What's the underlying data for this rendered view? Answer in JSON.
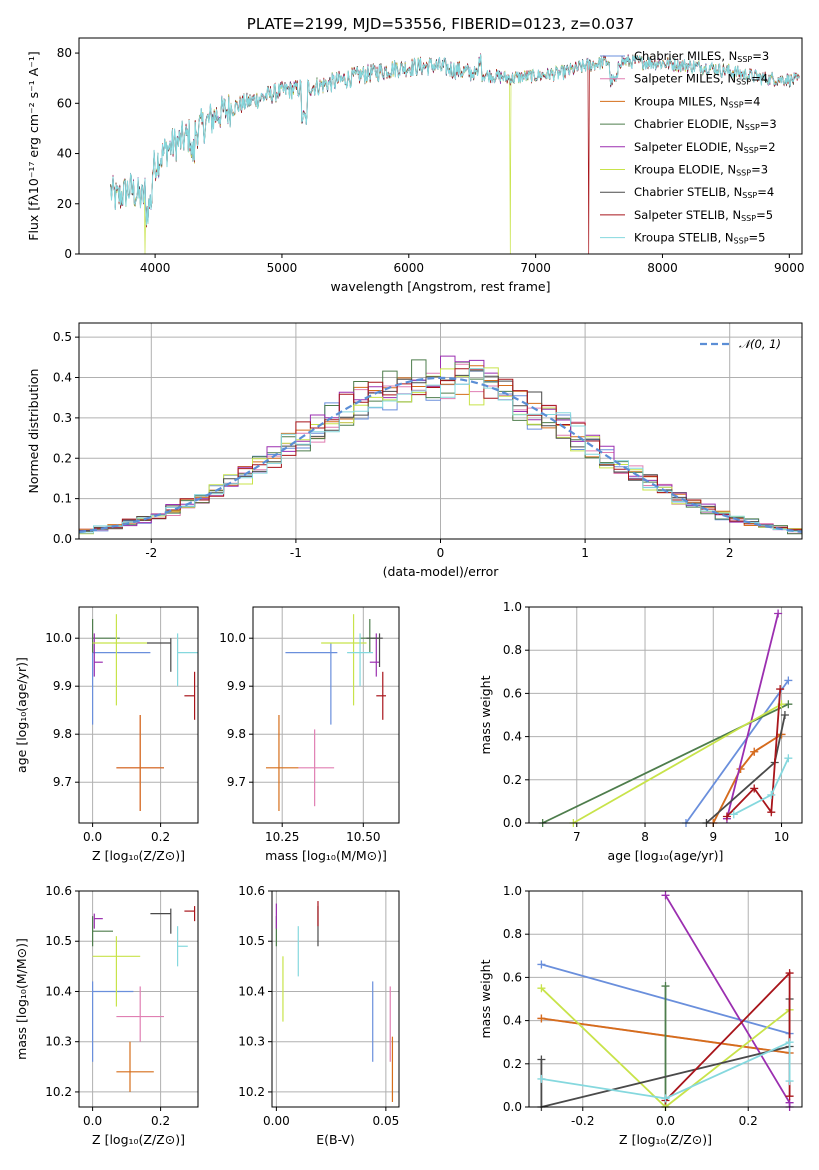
{
  "colors": {
    "Chabrier MILES": "#6a8fdc",
    "Salpeter MILES": "#e07fb2",
    "Kroupa MILES": "#d56e1a",
    "Chabrier ELODIE": "#4e7d4c",
    "Salpeter ELODIE": "#9b2fb0",
    "Kroupa ELODIE": "#c8e34a",
    "Chabrier STELIB": "#4a4a4a",
    "Salpeter STELIB": "#a8151b",
    "Kroupa STELIB": "#85d8de"
  },
  "chart_data": [
    {
      "id": "spectrum",
      "type": "line",
      "title": "PLATE=2199, MJD=53556, FIBERID=0123, z=0.037",
      "xlabel": "wavelength [Angstrom, rest frame]",
      "ylabel": "Flux [fλ10⁻¹⁷ erg cm⁻² s⁻¹ A⁻¹]",
      "xlim": [
        3400,
        9100
      ],
      "ylim": [
        0,
        86
      ],
      "xticks": [
        4000,
        5000,
        6000,
        7000,
        8000,
        9000
      ],
      "yticks": [
        0,
        20,
        40,
        60,
        80
      ],
      "continuum": {
        "x": [
          3650,
          3700,
          3800,
          3900,
          4000,
          4100,
          4300,
          4500,
          4700,
          5000,
          5300,
          5600,
          5900,
          6200,
          6500,
          6800,
          7000,
          7200,
          7400,
          7600,
          8000,
          8400,
          8800,
          9100
        ],
        "y": [
          25,
          22,
          26,
          22,
          36,
          42,
          48,
          56,
          60,
          65,
          67,
          71,
          74,
          75,
          72,
          70,
          71,
          72,
          75,
          77,
          76,
          74,
          70,
          69
        ]
      },
      "legend": [
        {
          "label": "Chabrier MILES, N",
          "n": "3"
        },
        {
          "label": "Salpeter MILES, N",
          "n": "4"
        },
        {
          "label": "Kroupa MILES, N",
          "n": "4"
        },
        {
          "label": "Chabrier ELODIE, N",
          "n": "3"
        },
        {
          "label": "Salpeter ELODIE, N",
          "n": "2"
        },
        {
          "label": "Kroupa ELODIE, N",
          "n": "3"
        },
        {
          "label": "Chabrier STELIB, N",
          "n": "4"
        },
        {
          "label": "Salpeter STELIB, N",
          "n": "5"
        },
        {
          "label": "Kroupa STELIB, N",
          "n": "5"
        }
      ],
      "legend_subscript": "SSP",
      "model_cutoffs": [
        {
          "series": "Salpeter STELIB",
          "x": 7420
        },
        {
          "series": "Kroupa ELODIE",
          "x": 6800
        },
        {
          "series": "Kroupa ELODIE",
          "x": 3920
        }
      ]
    },
    {
      "id": "residuals",
      "type": "histogram",
      "xlabel": "(data-model)/error",
      "ylabel": "Normed distribution",
      "xlim": [
        -2.5,
        2.5
      ],
      "ylim": [
        0,
        0.535
      ],
      "xticks": [
        -2,
        -1,
        0,
        1,
        2
      ],
      "yticks": [
        0.0,
        0.1,
        0.2,
        0.3,
        0.4,
        0.5
      ],
      "gaussian_label": "𝒩(0, 1)",
      "bin_width": 0.1
    },
    {
      "id": "age-vs-Z",
      "type": "errorbar",
      "xlabel": "Z [log₁₀(Z/Z⊙)]",
      "ylabel": "age  [log₁₀(age/yr)]",
      "xlim": [
        -0.04,
        0.31
      ],
      "ylim": [
        9.615,
        10.065
      ],
      "xticks": [
        0.0,
        0.2
      ],
      "yticks": [
        9.7,
        9.8,
        9.9,
        10.0
      ],
      "points": [
        {
          "series": "Chabrier MILES",
          "x": 0.0,
          "xerr": [
            0.0,
            0.17
          ],
          "y": 9.97,
          "yerr": [
            0.15,
            0.02
          ]
        },
        {
          "series": "Salpeter MILES",
          "x": 0.14,
          "xerr": [
            0.07,
            0.07
          ],
          "y": 9.73,
          "yerr": [
            0.09,
            0.11
          ]
        },
        {
          "series": "Kroupa MILES",
          "x": 0.14,
          "xerr": [
            0.07,
            0.07
          ],
          "y": 9.73,
          "yerr": [
            0.09,
            0.11
          ]
        },
        {
          "series": "Chabrier ELODIE",
          "x": 0.0,
          "xerr": [
            0.0,
            0.08
          ],
          "y": 10.0,
          "yerr": [
            0.03,
            0.04
          ]
        },
        {
          "series": "Salpeter ELODIE",
          "x": 0.005,
          "xerr": [
            0.0,
            0.025
          ],
          "y": 9.95,
          "yerr": [
            0.03,
            0.06
          ]
        },
        {
          "series": "Kroupa ELODIE",
          "x": 0.07,
          "xerr": [
            0.07,
            0.09
          ],
          "y": 9.99,
          "yerr": [
            0.13,
            0.06
          ]
        },
        {
          "series": "Chabrier STELIB",
          "x": 0.23,
          "xerr": [
            0.07,
            0.0
          ],
          "y": 9.99,
          "yerr": [
            0.06,
            0.01
          ]
        },
        {
          "series": "Salpeter STELIB",
          "x": 0.3,
          "xerr": [
            0.03,
            0.0
          ],
          "y": 9.88,
          "yerr": [
            0.05,
            0.05
          ]
        },
        {
          "series": "Kroupa STELIB",
          "x": 0.25,
          "xerr": [
            0.0,
            0.06
          ],
          "y": 9.97,
          "yerr": [
            0.07,
            0.04
          ]
        }
      ]
    },
    {
      "id": "age-vs-mass",
      "type": "errorbar",
      "xlabel": "mass [log₁₀(M/M⊙)]",
      "ylabel": "",
      "xlim": [
        10.16,
        10.61
      ],
      "ylim": [
        9.615,
        10.065
      ],
      "xticks": [
        10.25,
        10.5
      ],
      "yticks": [
        9.7,
        9.8,
        9.9,
        10.0
      ],
      "points": [
        {
          "series": "Chabrier MILES",
          "x": 10.4,
          "xerr": [
            0.14,
            0.02
          ],
          "y": 9.97,
          "yerr": [
            0.15,
            0.02
          ]
        },
        {
          "series": "Salpeter MILES",
          "x": 10.35,
          "xerr": [
            0.05,
            0.06
          ],
          "y": 9.73,
          "yerr": [
            0.08,
            0.08
          ]
        },
        {
          "series": "Kroupa MILES",
          "x": 10.24,
          "xerr": [
            0.04,
            0.06
          ],
          "y": 9.73,
          "yerr": [
            0.09,
            0.11
          ]
        },
        {
          "series": "Chabrier ELODIE",
          "x": 10.52,
          "xerr": [
            0.03,
            0.03
          ],
          "y": 10.0,
          "yerr": [
            0.03,
            0.04
          ]
        },
        {
          "series": "Salpeter ELODIE",
          "x": 10.54,
          "xerr": [
            0.02,
            0.01
          ],
          "y": 9.95,
          "yerr": [
            0.03,
            0.06
          ]
        },
        {
          "series": "Kroupa ELODIE",
          "x": 10.47,
          "xerr": [
            0.1,
            0.04
          ],
          "y": 9.99,
          "yerr": [
            0.13,
            0.06
          ]
        },
        {
          "series": "Chabrier STELIB",
          "x": 10.55,
          "xerr": [
            0.04,
            0.01
          ],
          "y": 10.0,
          "yerr": [
            0.06,
            0.01
          ]
        },
        {
          "series": "Salpeter STELIB",
          "x": 10.56,
          "xerr": [
            0.02,
            0.01
          ],
          "y": 9.88,
          "yerr": [
            0.05,
            0.05
          ]
        },
        {
          "series": "Kroupa STELIB",
          "x": 10.49,
          "xerr": [
            0.04,
            0.04
          ],
          "y": 9.97,
          "yerr": [
            0.07,
            0.04
          ]
        }
      ]
    },
    {
      "id": "weight-vs-age",
      "type": "line",
      "xlabel": "age  [log₁₀(age/yr)]",
      "ylabel": "mass weight",
      "xlim": [
        6.3,
        10.3
      ],
      "ylim": [
        0,
        1.0
      ],
      "xticks": [
        7,
        8,
        9,
        10
      ],
      "yticks": [
        0.0,
        0.2,
        0.4,
        0.6,
        0.8,
        1.0
      ],
      "series": [
        {
          "name": "Chabrier MILES",
          "x": [
            8.6,
            10.1
          ],
          "y": [
            0.0,
            0.66
          ]
        },
        {
          "name": "Salpeter MILES",
          "x": [
            9.0,
            9.4,
            9.6,
            10.0
          ],
          "y": [
            0.0,
            0.25,
            0.33,
            0.41
          ]
        },
        {
          "name": "Kroupa MILES",
          "x": [
            9.0,
            9.4,
            9.6,
            10.0
          ],
          "y": [
            0.0,
            0.25,
            0.33,
            0.41
          ]
        },
        {
          "name": "Chabrier ELODIE",
          "x": [
            6.5,
            10.1
          ],
          "y": [
            0.0,
            0.55
          ]
        },
        {
          "name": "Salpeter ELODIE",
          "x": [
            9.2,
            9.95
          ],
          "y": [
            0.02,
            0.97
          ]
        },
        {
          "name": "Kroupa ELODIE",
          "x": [
            6.95,
            10.0
          ],
          "y": [
            0.0,
            0.55
          ]
        },
        {
          "name": "Chabrier STELIB",
          "x": [
            8.9,
            9.9,
            10.05
          ],
          "y": [
            0.0,
            0.28,
            0.5
          ]
        },
        {
          "name": "Salpeter STELIB",
          "x": [
            9.2,
            9.6,
            9.85,
            9.98
          ],
          "y": [
            0.03,
            0.16,
            0.05,
            0.62
          ]
        },
        {
          "name": "Kroupa STELIB",
          "x": [
            9.3,
            9.85,
            10.1
          ],
          "y": [
            0.04,
            0.13,
            0.3
          ]
        }
      ]
    },
    {
      "id": "mass-vs-Z",
      "type": "errorbar",
      "xlabel": "Z [log₁₀(Z/Z⊙)]",
      "ylabel": "mass [log₁₀(M/M⊙)]",
      "xlim": [
        -0.04,
        0.31
      ],
      "ylim": [
        10.17,
        10.6
      ],
      "xticks": [
        0.0,
        0.2
      ],
      "yticks": [
        10.2,
        10.3,
        10.4,
        10.5,
        10.6
      ],
      "points": [
        {
          "series": "Chabrier MILES",
          "x": 0.0,
          "xerr": [
            0.0,
            0.12
          ],
          "y": 10.4,
          "yerr": [
            0.14,
            0.02
          ]
        },
        {
          "series": "Salpeter MILES",
          "x": 0.14,
          "xerr": [
            0.07,
            0.07
          ],
          "y": 10.35,
          "yerr": [
            0.05,
            0.06
          ]
        },
        {
          "series": "Kroupa MILES",
          "x": 0.11,
          "xerr": [
            0.04,
            0.07
          ],
          "y": 10.24,
          "yerr": [
            0.04,
            0.06
          ]
        },
        {
          "series": "Chabrier ELODIE",
          "x": 0.0,
          "xerr": [
            0.0,
            0.06
          ],
          "y": 10.52,
          "yerr": [
            0.03,
            0.03
          ]
        },
        {
          "series": "Salpeter ELODIE",
          "x": 0.005,
          "xerr": [
            0.0,
            0.025
          ],
          "y": 10.545,
          "yerr": [
            0.02,
            0.01
          ]
        },
        {
          "series": "Kroupa ELODIE",
          "x": 0.07,
          "xerr": [
            0.07,
            0.07
          ],
          "y": 10.47,
          "yerr": [
            0.1,
            0.04
          ]
        },
        {
          "series": "Chabrier STELIB",
          "x": 0.23,
          "xerr": [
            0.06,
            0.0
          ],
          "y": 10.555,
          "yerr": [
            0.04,
            0.01
          ]
        },
        {
          "series": "Salpeter STELIB",
          "x": 0.3,
          "xerr": [
            0.03,
            0.0
          ],
          "y": 10.56,
          "yerr": [
            0.02,
            0.01
          ]
        },
        {
          "series": "Kroupa STELIB",
          "x": 0.25,
          "xerr": [
            0.0,
            0.03
          ],
          "y": 10.49,
          "yerr": [
            0.04,
            0.04
          ]
        }
      ]
    },
    {
      "id": "mass-vs-EBV",
      "type": "errorbar",
      "xlabel": "E(B-V)",
      "ylabel": "",
      "xlim": [
        -0.002,
        0.056
      ],
      "ylim": [
        10.17,
        10.6
      ],
      "xticks": [
        0.0,
        0.05
      ],
      "yticks": [
        10.2,
        10.3,
        10.4,
        10.5,
        10.6
      ],
      "points": [
        {
          "series": "Chabrier MILES",
          "x": 0.044,
          "y": 10.34,
          "yerr": [
            0.08,
            0.08
          ]
        },
        {
          "series": "Salpeter MILES",
          "x": 0.052,
          "y": 10.34,
          "yerr": [
            0.08,
            0.07
          ]
        },
        {
          "series": "Kroupa MILES",
          "x": 0.053,
          "y": 10.24,
          "yerr": [
            0.06,
            0.07
          ]
        },
        {
          "series": "Chabrier ELODIE",
          "x": 0.0,
          "y": 10.52,
          "yerr": [
            0.03,
            0.03
          ]
        },
        {
          "series": "Salpeter ELODIE",
          "x": 0.0,
          "y": 10.545,
          "yerr": [
            0.02,
            0.03
          ]
        },
        {
          "series": "Kroupa ELODIE",
          "x": 0.003,
          "y": 10.41,
          "yerr": [
            0.07,
            0.06
          ]
        },
        {
          "series": "Chabrier STELIB",
          "x": 0.019,
          "y": 10.53,
          "yerr": [
            0.04,
            0.04
          ]
        },
        {
          "series": "Salpeter STELIB",
          "x": 0.019,
          "y": 10.55,
          "yerr": [
            0.02,
            0.03
          ]
        },
        {
          "series": "Kroupa STELIB",
          "x": 0.01,
          "y": 10.48,
          "yerr": [
            0.05,
            0.05
          ]
        }
      ]
    },
    {
      "id": "weight-vs-Z",
      "type": "line",
      "xlabel": "Z [log₁₀(Z/Z⊙)]",
      "ylabel": "mass weight",
      "xlim": [
        -0.33,
        0.33
      ],
      "ylim": [
        0,
        1.0
      ],
      "xticks": [
        -0.2,
        0.0,
        0.2
      ],
      "yticks": [
        0.0,
        0.2,
        0.4,
        0.6,
        0.8,
        1.0
      ],
      "series": [
        {
          "name": "Chabrier MILES",
          "x": [
            -0.3,
            0.3
          ],
          "y": [
            0.66,
            0.34
          ]
        },
        {
          "name": "Salpeter MILES",
          "x": [
            -0.3,
            0.3
          ],
          "y": [
            0.41,
            0.25
          ]
        },
        {
          "name": "Kroupa MILES",
          "x": [
            -0.3,
            0.3
          ],
          "y": [
            0.41,
            0.25
          ]
        },
        {
          "name": "Chabrier ELODIE",
          "x": [
            0.0,
            0.0
          ],
          "y": [
            0.0,
            0.56
          ]
        },
        {
          "name": "Salpeter ELODIE",
          "x": [
            0.0,
            0.3,
            0.3
          ],
          "y": [
            0.98,
            0.02,
            0.0
          ]
        },
        {
          "name": "Kroupa ELODIE",
          "x": [
            -0.3,
            0.0,
            0.3
          ],
          "y": [
            0.55,
            0.0,
            0.45
          ]
        },
        {
          "name": "Chabrier STELIB",
          "x": [
            -0.3,
            -0.3,
            0.3,
            0.3
          ],
          "y": [
            0.22,
            0.0,
            0.28,
            0.5
          ]
        },
        {
          "name": "Salpeter STELIB",
          "x": [
            0.0,
            0.3,
            0.3
          ],
          "y": [
            0.03,
            0.62,
            0.05
          ]
        },
        {
          "name": "Kroupa STELIB",
          "x": [
            -0.3,
            0.0,
            0.3,
            0.3
          ],
          "y": [
            0.13,
            0.04,
            0.3,
            0.12
          ]
        }
      ]
    }
  ]
}
